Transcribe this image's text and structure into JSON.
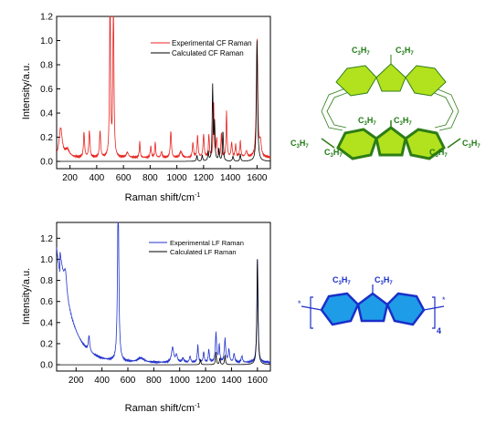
{
  "chart_data": [
    {
      "type": "line",
      "xlabel": "Raman shift/cm",
      "xlabel_sup": "-1",
      "ylabel": "Intensity/a.u.",
      "xlim": [
        100,
        1700
      ],
      "ylim": [
        -0.06,
        1.2
      ],
      "xticks": [
        200,
        400,
        600,
        800,
        1000,
        1200,
        1400,
        1600
      ],
      "yticks": [
        0.0,
        0.2,
        0.4,
        0.6,
        0.8,
        1.0,
        1.2
      ],
      "ytick_labels": [
        "0.0",
        "0.2",
        "0.4",
        "0.6",
        "0.8",
        "1.0",
        "1.2"
      ],
      "legend_position": "top-right",
      "series": [
        {
          "name": "Experimental CF Raman",
          "color": "#e8231f",
          "baseline": 0.03,
          "peaks": [
            [
              130,
              0.24,
              14
            ],
            [
              180,
              0.06,
              20
            ],
            [
              305,
              0.21,
              5
            ],
            [
              345,
              0.22,
              5
            ],
            [
              425,
              0.22,
              5
            ],
            [
              500,
              1.45,
              4
            ],
            [
              525,
              1.45,
              4
            ],
            [
              630,
              0.04,
              10
            ],
            [
              722,
              0.13,
              4
            ],
            [
              805,
              0.09,
              5
            ],
            [
              838,
              0.13,
              4
            ],
            [
              885,
              0.05,
              6
            ],
            [
              955,
              0.22,
              5
            ],
            [
              1030,
              0.05,
              10
            ],
            [
              1120,
              0.12,
              5
            ],
            [
              1155,
              0.18,
              5
            ],
            [
              1200,
              0.19,
              5
            ],
            [
              1240,
              0.19,
              4
            ],
            [
              1275,
              0.47,
              4
            ],
            [
              1298,
              0.15,
              5
            ],
            [
              1333,
              0.2,
              4
            ],
            [
              1372,
              0.38,
              4
            ],
            [
              1410,
              0.12,
              5
            ],
            [
              1440,
              0.1,
              5
            ],
            [
              1475,
              0.13,
              5
            ],
            [
              1520,
              0.05,
              8
            ],
            [
              1600,
              0.97,
              6
            ],
            [
              1625,
              0.12,
              8
            ]
          ]
        },
        {
          "name": "Calculated CF Raman",
          "color": "#000000",
          "baseline": 0.0,
          "peaks": [
            [
              1150,
              0.05,
              4
            ],
            [
              1190,
              0.05,
              4
            ],
            [
              1235,
              0.08,
              4
            ],
            [
              1268,
              0.62,
              4
            ],
            [
              1282,
              0.3,
              4
            ],
            [
              1315,
              0.1,
              4
            ],
            [
              1345,
              0.25,
              4
            ],
            [
              1420,
              0.04,
              5
            ],
            [
              1475,
              0.06,
              4
            ],
            [
              1600,
              1.0,
              5
            ]
          ]
        }
      ]
    },
    {
      "type": "line",
      "xlabel": "Raman shift/cm",
      "xlabel_sup": "-1",
      "ylabel": "Intensity/a.u.",
      "xlim": [
        50,
        1700
      ],
      "ylim": [
        -0.06,
        1.35
      ],
      "xticks": [
        200,
        400,
        600,
        800,
        1000,
        1200,
        1400,
        1600
      ],
      "yticks": [
        0.0,
        0.2,
        0.4,
        0.6,
        0.8,
        1.0,
        1.2
      ],
      "ytick_labels": [
        "0.0",
        "0.2",
        "0.4",
        "0.6",
        "0.8",
        "1.0",
        "1.2"
      ],
      "legend_position": "top-right",
      "series": [
        {
          "name": "Experimental LF Raman",
          "color": "#2233cc",
          "baseline": 0.02,
          "decay": [
            1.05,
            75,
            100
          ],
          "peaks": [
            [
              118,
              0.2,
              12
            ],
            [
              300,
              0.15,
              6
            ],
            [
              525,
              1.6,
              6
            ],
            [
              700,
              0.04,
              30
            ],
            [
              945,
              0.14,
              10
            ],
            [
              975,
              0.07,
              8
            ],
            [
              1025,
              0.04,
              8
            ],
            [
              1080,
              0.06,
              6
            ],
            [
              1140,
              0.16,
              5
            ],
            [
              1185,
              0.1,
              5
            ],
            [
              1225,
              0.12,
              5
            ],
            [
              1280,
              0.28,
              6
            ],
            [
              1305,
              0.16,
              5
            ],
            [
              1350,
              0.22,
              6
            ],
            [
              1380,
              0.12,
              6
            ],
            [
              1420,
              0.08,
              6
            ],
            [
              1480,
              0.06,
              6
            ],
            [
              1600,
              0.98,
              5
            ]
          ]
        },
        {
          "name": "Calculated LF Raman",
          "color": "#000000",
          "baseline": 0.0,
          "peaks": [
            [
              1160,
              0.05,
              4
            ],
            [
              1280,
              0.12,
              4
            ],
            [
              1310,
              0.06,
              4
            ],
            [
              1350,
              0.09,
              4
            ],
            [
              1600,
              1.0,
              5
            ]
          ]
        }
      ]
    }
  ],
  "molecules": {
    "cf": {
      "top_labels": [
        "C3H7",
        "C3H7"
      ],
      "middle_labels": [
        "C3H7",
        "C3H7"
      ],
      "left_labels": [
        "C3H7",
        "C3H7"
      ],
      "right_labels": [
        "C3H7",
        "C3H7"
      ],
      "fill_color": "#b2e21e",
      "stroke_color": "#2e7d16",
      "label_color": "#1f7a12"
    },
    "lf": {
      "labels": [
        "C3H7",
        "C3H7"
      ],
      "repeat_count": "4",
      "fill_color": "#1e9ce8",
      "stroke_color": "#1a2fc9",
      "label_color": "#1a2fc9"
    }
  }
}
